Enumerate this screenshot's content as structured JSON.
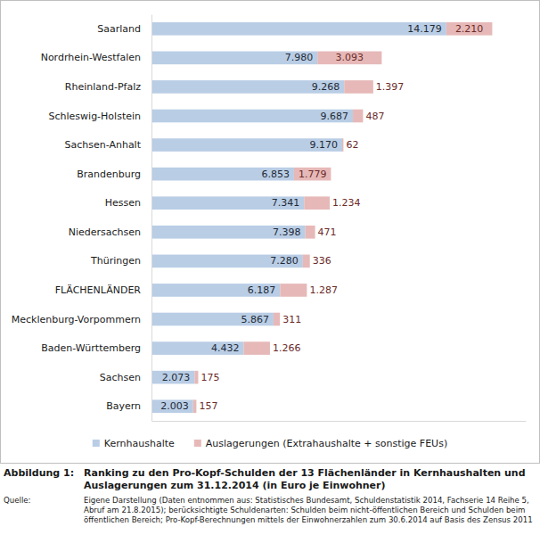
{
  "chart_data": {
    "type": "bar",
    "orientation": "horizontal",
    "stacked": true,
    "data_labels": true,
    "tick_labels": "y",
    "legend": "bottom",
    "figure_label": "Abbildung 1:",
    "title": "Ranking zu den Pro-Kopf-Schulden der 13 Flächenländer in Kernhaushalten und Auslagerungen zum 31.12.2014 (in Euro je Einwohner)",
    "source_label": "Quelle:",
    "source": "Eigene Darstellung (Daten entnommen aus: Statistisches Bundesamt, Schuldenstatistik 2014, Fachserie 14 Reihe 5, Abruf am 21.8.2015); berücksichtigte Schuldenarten: Schulden beim nicht-öffentlichen Bereich und Schulden beim öffentlichen Bereich; Pro-Kopf-Berechnungen mittels der Einwohnerzahlen zum 30.6.2014 auf Basis des Zensus 2011",
    "categories": [
      "Saarland",
      "Nordrhein-Westfalen",
      "Rheinland-Pfalz",
      "Schleswig-Holstein",
      "Sachsen-Anhalt",
      "Brandenburg",
      "Hessen",
      "Niedersachsen",
      "Thüringen",
      "FLÄCHENLÄNDER",
      "Mecklenburg-Vorpommern",
      "Baden-Württemberg",
      "Sachsen",
      "Bayern"
    ],
    "xlim": [
      0,
      18000
    ],
    "series": [
      {
        "name": "Kernhaushalte",
        "color": "#b9cde5",
        "values": [
          14179,
          7980,
          9268,
          9687,
          9170,
          6853,
          7341,
          7398,
          7280,
          6187,
          5867,
          4432,
          2073,
          2003
        ],
        "value_labels": [
          "14.179",
          "7.980",
          "9.268",
          "9.687",
          "9.170",
          "6.853",
          "7.341",
          "7.398",
          "7.280",
          "6.187",
          "5.867",
          "4.432",
          "2.073",
          "2.003"
        ]
      },
      {
        "name": "Auslagerungen (Extrahaushalte + sonstige FEUs)",
        "color": "#e6b9b8",
        "values": [
          2210,
          3093,
          1397,
          487,
          62,
          1779,
          1234,
          471,
          336,
          1287,
          311,
          1266,
          175,
          157
        ],
        "value_labels": [
          "2.210",
          "3.093",
          "1.397",
          "487",
          "62",
          "1.779",
          "1.234",
          "471",
          "336",
          "1.287",
          "311",
          "1.266",
          "175",
          "157"
        ]
      }
    ]
  }
}
